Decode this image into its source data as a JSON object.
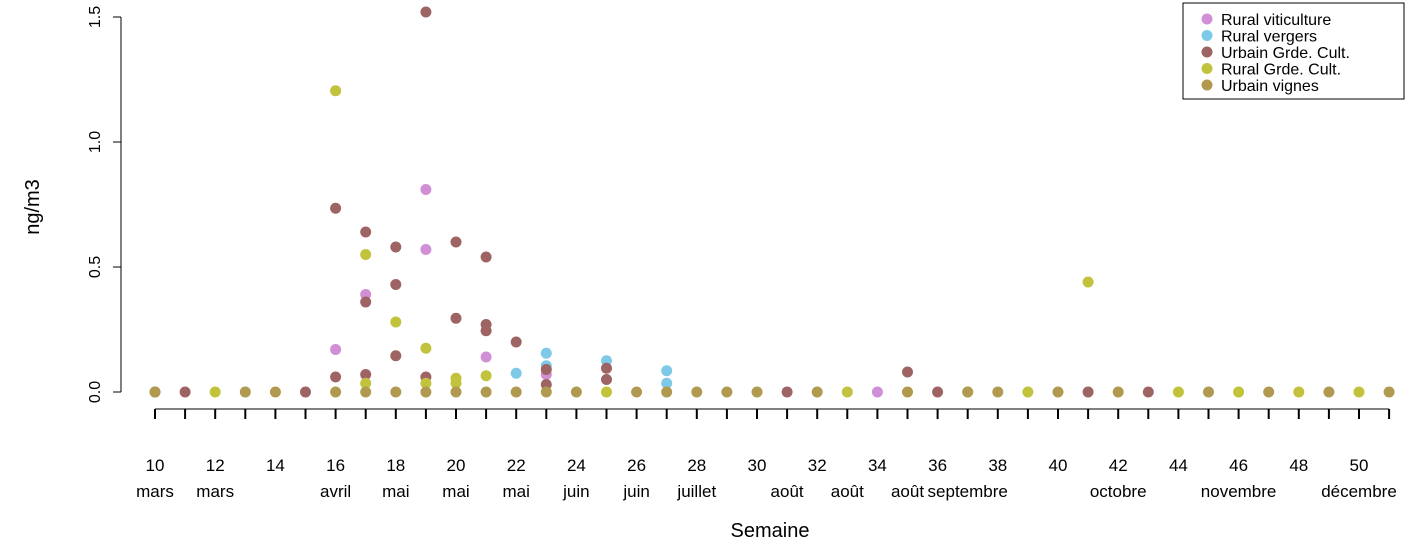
{
  "chart_data": {
    "type": "scatter",
    "xlabel": "Semaine",
    "ylabel": "ng/m3",
    "xlim": [
      10,
      51
    ],
    "ylim": [
      0,
      1.5
    ],
    "y_ticks": [
      {
        "value": 0,
        "label": "0.0"
      },
      {
        "value": 0.5,
        "label": "0.5"
      },
      {
        "value": 1.0,
        "label": "1.0"
      },
      {
        "value": 1.5,
        "label": "1.5"
      }
    ],
    "x_tick_labels": [
      {
        "x": 10,
        "week": "10",
        "month": "mars"
      },
      {
        "x": 12,
        "week": "12",
        "month": "mars"
      },
      {
        "x": 14,
        "week": "14",
        "month": ""
      },
      {
        "x": 16,
        "week": "16",
        "month": "avril"
      },
      {
        "x": 18,
        "week": "18",
        "month": "mai"
      },
      {
        "x": 20,
        "week": "20",
        "month": "mai"
      },
      {
        "x": 22,
        "week": "22",
        "month": "mai"
      },
      {
        "x": 24,
        "week": "24",
        "month": "juin"
      },
      {
        "x": 26,
        "week": "26",
        "month": "juin"
      },
      {
        "x": 28,
        "week": "28",
        "month": "juillet"
      },
      {
        "x": 30,
        "week": "30",
        "month": ""
      },
      {
        "x": 31,
        "week": "",
        "month": "août"
      },
      {
        "x": 32,
        "week": "32",
        "month": ""
      },
      {
        "x": 33,
        "week": "",
        "month": "août"
      },
      {
        "x": 34,
        "week": "34",
        "month": ""
      },
      {
        "x": 35,
        "week": "",
        "month": "août"
      },
      {
        "x": 36,
        "week": "36",
        "month": ""
      },
      {
        "x": 37,
        "week": "",
        "month": "septembre"
      },
      {
        "x": 38,
        "week": "38",
        "month": ""
      },
      {
        "x": 40,
        "week": "40",
        "month": ""
      },
      {
        "x": 42,
        "week": "42",
        "month": "octobre"
      },
      {
        "x": 44,
        "week": "44",
        "month": ""
      },
      {
        "x": 46,
        "week": "46",
        "month": "novembre"
      },
      {
        "x": 48,
        "week": "48",
        "month": ""
      },
      {
        "x": 50,
        "week": "50",
        "month": "décembre"
      }
    ],
    "grid": false,
    "legend_position": "top-right",
    "series": [
      {
        "name": "Rural viticulture",
        "color": "#d18fd6",
        "points": [
          [
            16,
            0.17
          ],
          [
            17,
            0.39
          ],
          [
            19,
            0.81
          ],
          [
            19,
            0.57
          ],
          [
            21,
            0.14
          ],
          [
            23,
            0.07
          ],
          [
            34,
            0.0
          ]
        ]
      },
      {
        "name": "Rural vergers",
        "color": "#7ec8e8",
        "points": [
          [
            22,
            0.075
          ],
          [
            23,
            0.155
          ],
          [
            23,
            0.105
          ],
          [
            25,
            0.125
          ],
          [
            27,
            0.085
          ],
          [
            27,
            0.035
          ]
        ]
      },
      {
        "name": "Urbain Grde. Cult.",
        "color": "#9e6464",
        "points": [
          [
            10,
            0
          ],
          [
            11,
            0
          ],
          [
            15,
            0
          ],
          [
            16,
            0.735
          ],
          [
            16,
            0.06
          ],
          [
            17,
            0.64
          ],
          [
            17,
            0.36
          ],
          [
            17,
            0.07
          ],
          [
            18,
            0.58
          ],
          [
            18,
            0.43
          ],
          [
            18,
            0.145
          ],
          [
            19,
            1.52
          ],
          [
            19,
            0.06
          ],
          [
            20,
            0.6
          ],
          [
            20,
            0.295
          ],
          [
            21,
            0.54
          ],
          [
            21,
            0.27
          ],
          [
            21,
            0.245
          ],
          [
            22,
            0.2
          ],
          [
            23,
            0.09
          ],
          [
            23,
            0.03
          ],
          [
            25,
            0.095
          ],
          [
            25,
            0.05
          ],
          [
            31,
            0.0
          ],
          [
            35,
            0.08
          ],
          [
            36,
            0.0
          ],
          [
            41,
            0.0
          ],
          [
            43,
            0.0
          ]
        ]
      },
      {
        "name": "Rural Grde. Cult.",
        "color": "#c2c23c",
        "points": [
          [
            12,
            0
          ],
          [
            16,
            1.205
          ],
          [
            17,
            0.55
          ],
          [
            17,
            0.035
          ],
          [
            18,
            0.28
          ],
          [
            19,
            0.175
          ],
          [
            19,
            0.035
          ],
          [
            20,
            0.055
          ],
          [
            20,
            0.035
          ],
          [
            21,
            0.065
          ],
          [
            25,
            0.0
          ],
          [
            33,
            0.0
          ],
          [
            37,
            0.0
          ],
          [
            39,
            0.0
          ],
          [
            41,
            0.44
          ],
          [
            44,
            0.0
          ],
          [
            46,
            0.0
          ],
          [
            48,
            0.0
          ],
          [
            50,
            0.0
          ]
        ]
      },
      {
        "name": "Urbain vignes",
        "color": "#b19a50",
        "points": [
          [
            10,
            0
          ],
          [
            13,
            0
          ],
          [
            14,
            0
          ],
          [
            16,
            0
          ],
          [
            17,
            0
          ],
          [
            18,
            0
          ],
          [
            19,
            0
          ],
          [
            20,
            0
          ],
          [
            21,
            0
          ],
          [
            22,
            0
          ],
          [
            23,
            0
          ],
          [
            24,
            0
          ],
          [
            26,
            0
          ],
          [
            27,
            0
          ],
          [
            28,
            0
          ],
          [
            29,
            0
          ],
          [
            30,
            0
          ],
          [
            32,
            0
          ],
          [
            35,
            0
          ],
          [
            37,
            0
          ],
          [
            38,
            0
          ],
          [
            40,
            0
          ],
          [
            42,
            0
          ],
          [
            45,
            0
          ],
          [
            47,
            0
          ],
          [
            49,
            0
          ],
          [
            51,
            0
          ]
        ]
      }
    ]
  }
}
